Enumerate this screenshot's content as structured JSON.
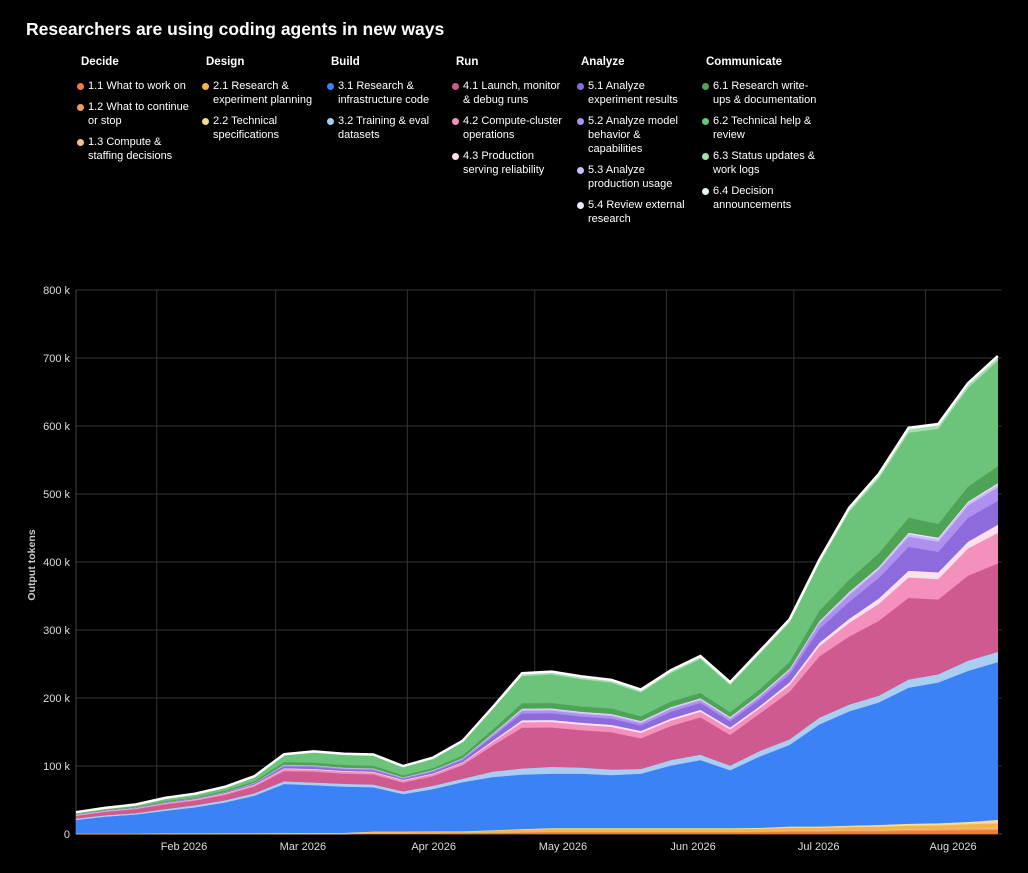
{
  "chart_data": {
    "type": "area",
    "stacked": true,
    "title": "Researchers are using coding agents in new ways",
    "ylabel": "Output tokens",
    "ylim": [
      0,
      800000
    ],
    "yticks": [
      0,
      100000,
      200000,
      300000,
      400000,
      500000,
      600000,
      700000,
      800000
    ],
    "ytick_labels": [
      "0",
      "100 k",
      "200 k",
      "300 k",
      "400 k",
      "500 k",
      "600 k",
      "700 k",
      "800 k"
    ],
    "xlim": [
      "2026-01-13",
      "2026-08-19"
    ],
    "xticks": [
      "2026-02-01",
      "2026-03-01",
      "2026-04-01",
      "2026-05-01",
      "2026-06-01",
      "2026-07-01",
      "2026-08-01"
    ],
    "xtick_labels": [
      "Feb 2026",
      "Mar 2026",
      "Apr 2026",
      "May 2026",
      "Jun 2026",
      "Jul 2026",
      "Aug 2026"
    ],
    "grid": true,
    "legend_position": "top",
    "x": [
      "2026-01-13",
      "2026-01-20",
      "2026-01-27",
      "2026-02-03",
      "2026-02-10",
      "2026-02-17",
      "2026-02-24",
      "2026-03-03",
      "2026-03-10",
      "2026-03-17",
      "2026-03-24",
      "2026-03-31",
      "2026-04-07",
      "2026-04-14",
      "2026-04-21",
      "2026-04-28",
      "2026-05-05",
      "2026-05-12",
      "2026-05-19",
      "2026-05-26",
      "2026-06-02",
      "2026-06-09",
      "2026-06-16",
      "2026-06-23",
      "2026-06-30",
      "2026-07-07",
      "2026-07-14",
      "2026-07-21",
      "2026-07-28",
      "2026-08-04",
      "2026-08-11",
      "2026-08-18"
    ],
    "groups": [
      {
        "name": "Decide",
        "items": [
          {
            "key": "d11",
            "name": "1.1 What to work on",
            "color": "#f07c3c"
          },
          {
            "key": "d12",
            "name": "1.2 What to continue or stop",
            "color": "#f5995e"
          },
          {
            "key": "d13",
            "name": "1.3 Compute & staffing decisions",
            "color": "#f9bf90"
          }
        ]
      },
      {
        "name": "Design",
        "items": [
          {
            "key": "d21",
            "name": "2.1 Research & experiment planning",
            "color": "#f4b44c"
          },
          {
            "key": "d22",
            "name": "2.2 Technical specifications",
            "color": "#f9dc8f"
          }
        ]
      },
      {
        "name": "Build",
        "items": [
          {
            "key": "b31",
            "name": "3.1 Research & infrastructure code",
            "color": "#3b82f6"
          },
          {
            "key": "b32",
            "name": "3.2 Training & eval datasets",
            "color": "#a8cff3"
          }
        ]
      },
      {
        "name": "Run",
        "items": [
          {
            "key": "r41",
            "name": "4.1 Launch, monitor & debug runs",
            "color": "#cf5a8f"
          },
          {
            "key": "r42",
            "name": "4.2 Compute-cluster operations",
            "color": "#f58fbc"
          },
          {
            "key": "r43",
            "name": "4.3 Production serving reliability",
            "color": "#fce0ec"
          }
        ]
      },
      {
        "name": "Analyze",
        "items": [
          {
            "key": "a51",
            "name": "5.1 Analyze experiment results",
            "color": "#8e6bdc"
          },
          {
            "key": "a52",
            "name": "5.2 Analyze model behavior & capabilities",
            "color": "#ae90f0"
          },
          {
            "key": "a53",
            "name": "5.3 Analyze production usage",
            "color": "#cdbdf6"
          },
          {
            "key": "a54",
            "name": "5.4 Review external research",
            "color": "#ede6fc"
          }
        ]
      },
      {
        "name": "Communicate",
        "items": [
          {
            "key": "c61",
            "name": "6.1 Research write-ups & documentation",
            "color": "#4fa356"
          },
          {
            "key": "c62",
            "name": "6.2 Technical help & review",
            "color": "#6cc47a"
          },
          {
            "key": "c63",
            "name": "6.3 Status updates & work logs",
            "color": "#a6dfaf"
          },
          {
            "key": "c64",
            "name": "6.4 Decision announcements",
            "color": "#e6f6e8"
          }
        ]
      }
    ],
    "stack_order": [
      "d11",
      "d12",
      "d13",
      "d21",
      "d22",
      "b31",
      "b32",
      "r41",
      "r42",
      "r43",
      "a51",
      "a52",
      "a53",
      "a54",
      "c61",
      "c62",
      "c63",
      "c64"
    ],
    "series": {
      "d11": [
        0,
        0,
        0,
        0,
        0,
        0,
        0,
        0,
        0,
        0,
        500,
        500,
        800,
        1000,
        1500,
        2000,
        2500,
        2500,
        2500,
        2500,
        2500,
        2500,
        2500,
        3000,
        3500,
        3500,
        4000,
        4000,
        4500,
        5000,
        5500,
        6000
      ],
      "d12": [
        0,
        0,
        0,
        0,
        0,
        0,
        0,
        0,
        0,
        0,
        500,
        500,
        500,
        500,
        800,
        1000,
        1000,
        1000,
        1000,
        1000,
        1000,
        1000,
        1000,
        1000,
        1200,
        1200,
        1500,
        1500,
        1800,
        2000,
        2000,
        2000
      ],
      "d13": [
        0,
        0,
        0,
        0,
        0,
        0,
        0,
        0,
        0,
        0,
        500,
        500,
        500,
        500,
        500,
        800,
        800,
        800,
        800,
        800,
        800,
        800,
        800,
        800,
        1000,
        1000,
        1000,
        1000,
        1000,
        1000,
        1000,
        1000
      ],
      "d21": [
        500,
        500,
        500,
        800,
        800,
        1000,
        1000,
        1000,
        1200,
        1200,
        1500,
        1500,
        1500,
        1500,
        2000,
        2500,
        3000,
        3000,
        3000,
        3000,
        3000,
        3000,
        3000,
        3000,
        3500,
        3500,
        4000,
        4500,
        5000,
        5000,
        6000,
        7000
      ],
      "d22": [
        300,
        300,
        300,
        500,
        500,
        500,
        500,
        700,
        700,
        700,
        800,
        800,
        800,
        800,
        1000,
        1200,
        1500,
        1500,
        1500,
        1500,
        1500,
        1500,
        1500,
        1500,
        2000,
        2000,
        2000,
        2500,
        3000,
        3000,
        3500,
        5000
      ],
      "b31": [
        20000,
        25000,
        28000,
        33000,
        38000,
        45000,
        55000,
        72000,
        70000,
        68000,
        65000,
        55000,
        62000,
        72000,
        78000,
        80000,
        80000,
        80000,
        78000,
        80000,
        92000,
        100000,
        85000,
        105000,
        120000,
        150000,
        168000,
        180000,
        200000,
        207000,
        222000,
        232000
      ],
      "b32": [
        2000,
        2000,
        2000,
        2500,
        3000,
        3000,
        3500,
        4000,
        4000,
        4000,
        4000,
        4000,
        5000,
        5000,
        8000,
        9000,
        10000,
        9000,
        8000,
        7000,
        8000,
        8000,
        7000,
        8000,
        8000,
        10000,
        10000,
        10000,
        12000,
        12000,
        15000,
        15000
      ],
      "r41": [
        4000,
        5000,
        6000,
        7000,
        7000,
        8000,
        10000,
        15000,
        16000,
        15000,
        15000,
        13000,
        14000,
        20000,
        38000,
        60000,
        58000,
        55000,
        55000,
        45000,
        50000,
        55000,
        45000,
        55000,
        70000,
        90000,
        100000,
        110000,
        120000,
        110000,
        125000,
        130000
      ],
      "r42": [
        1000,
        1000,
        1000,
        1500,
        1500,
        2000,
        2000,
        3000,
        3000,
        3000,
        3000,
        3000,
        3000,
        3500,
        5000,
        8000,
        8000,
        8000,
        8000,
        8000,
        8000,
        8000,
        8000,
        8000,
        10000,
        15000,
        20000,
        25000,
        30000,
        30000,
        40000,
        45000
      ],
      "r43": [
        500,
        500,
        500,
        500,
        500,
        800,
        800,
        1000,
        1000,
        1000,
        1000,
        1000,
        1000,
        1000,
        2000,
        3000,
        3000,
        3000,
        3000,
        3000,
        3000,
        3000,
        3000,
        3000,
        4000,
        5000,
        6000,
        8000,
        10000,
        10000,
        10000,
        12000
      ],
      "a51": [
        500,
        500,
        500,
        800,
        1000,
        1000,
        1500,
        3000,
        3000,
        2500,
        2500,
        2000,
        2500,
        3000,
        6000,
        10000,
        10000,
        9000,
        9000,
        8000,
        10000,
        10000,
        9000,
        10000,
        12000,
        20000,
        25000,
        30000,
        35000,
        30000,
        35000,
        35000
      ],
      "a52": [
        300,
        300,
        300,
        500,
        500,
        500,
        800,
        1500,
        1500,
        1500,
        1500,
        1000,
        1500,
        2000,
        3000,
        4000,
        4000,
        4000,
        4000,
        3500,
        4000,
        4000,
        3500,
        4000,
        5000,
        8000,
        10000,
        12000,
        15000,
        15000,
        18000,
        20000
      ],
      "a53": [
        0,
        0,
        0,
        0,
        0,
        0,
        200,
        500,
        500,
        500,
        500,
        500,
        500,
        500,
        1000,
        2000,
        2000,
        2000,
        2000,
        2000,
        2000,
        2000,
        2000,
        2000,
        2000,
        3000,
        3000,
        3000,
        4000,
        4000,
        4000,
        4000
      ],
      "a54": [
        0,
        0,
        0,
        0,
        0,
        0,
        200,
        300,
        300,
        300,
        300,
        300,
        300,
        300,
        500,
        1000,
        1000,
        1000,
        1000,
        1000,
        1000,
        1000,
        1000,
        1000,
        1000,
        1000,
        1500,
        1500,
        2000,
        2000,
        2000,
        2000
      ],
      "c61": [
        800,
        800,
        1000,
        1500,
        1500,
        2000,
        2500,
        4000,
        4000,
        4000,
        4000,
        3000,
        3000,
        4000,
        6000,
        8000,
        8000,
        8000,
        8000,
        7000,
        8000,
        8000,
        7000,
        8000,
        10000,
        15000,
        18000,
        20000,
        22000,
        20000,
        22000,
        25000
      ],
      "c62": [
        2000,
        2500,
        3000,
        4000,
        4500,
        5000,
        6000,
        10000,
        15000,
        15000,
        15000,
        12000,
        14000,
        20000,
        30000,
        40000,
        42000,
        40000,
        38000,
        35000,
        42000,
        50000,
        40000,
        52000,
        58000,
        70000,
        100000,
        110000,
        125000,
        140000,
        145000,
        155000
      ],
      "c63": [
        200,
        200,
        300,
        500,
        500,
        500,
        800,
        1000,
        1000,
        1000,
        1000,
        1000,
        1000,
        1000,
        2000,
        3000,
        3000,
        3000,
        3000,
        3000,
        3000,
        3000,
        3000,
        3000,
        3500,
        4000,
        4000,
        5000,
        5000,
        5000,
        5000,
        5000
      ],
      "c64": [
        0,
        0,
        0,
        0,
        0,
        0,
        200,
        300,
        300,
        300,
        300,
        300,
        300,
        300,
        500,
        1000,
        1000,
        1000,
        1000,
        1000,
        1000,
        1000,
        1000,
        1000,
        1000,
        1000,
        1500,
        1500,
        2000,
        2000,
        2000,
        2000
      ]
    }
  }
}
